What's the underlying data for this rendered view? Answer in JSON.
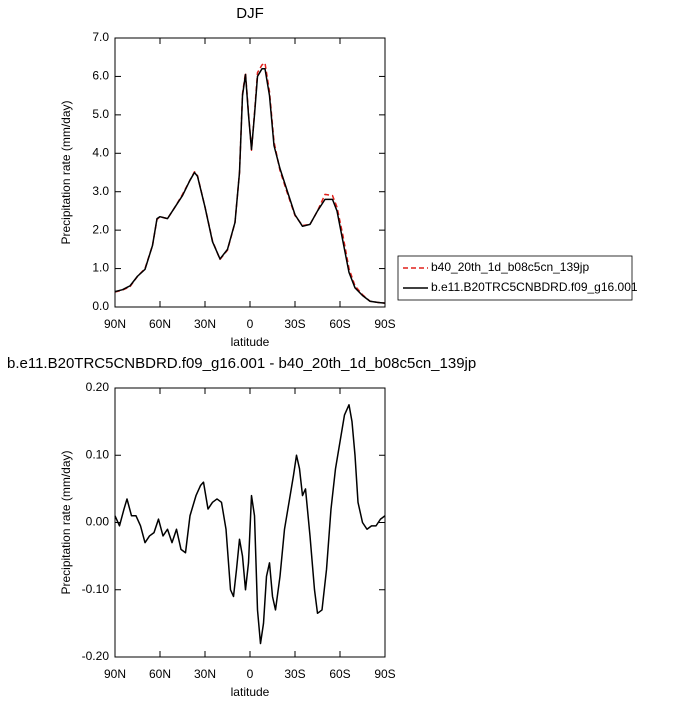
{
  "chart_data": [
    {
      "type": "line",
      "title": "DJF",
      "xlabel": "latitude",
      "ylabel": "Precipitation rate (mm/day)",
      "x": [
        90,
        85,
        80,
        75,
        70,
        65,
        62,
        60,
        55,
        50,
        45,
        40,
        37,
        35,
        30,
        25,
        20,
        15,
        10,
        7,
        5,
        3,
        1,
        -1,
        -3,
        -5,
        -8,
        -10,
        -13,
        -16,
        -20,
        -25,
        -30,
        -35,
        -40,
        -45,
        -50,
        -55,
        -58,
        -62,
        -66,
        -70,
        -75,
        -80,
        -85,
        -90
      ],
      "series": [
        {
          "name": "b40_20th_1d_b08c5cn_139jp",
          "color": "#e0201b",
          "dash": true,
          "values": [
            0.39,
            0.44,
            0.53,
            0.8,
            1.0,
            1.6,
            2.28,
            2.35,
            2.3,
            2.6,
            2.93,
            3.3,
            3.52,
            3.42,
            2.6,
            1.72,
            1.24,
            1.48,
            2.2,
            3.5,
            5.55,
            6.1,
            5.05,
            4.08,
            5.05,
            6.1,
            6.3,
            6.35,
            5.6,
            4.3,
            3.55,
            2.95,
            2.38,
            2.12,
            2.15,
            2.5,
            2.93,
            2.9,
            2.6,
            1.85,
            1.0,
            0.55,
            0.32,
            0.15,
            0.12,
            0.1
          ]
        },
        {
          "name": "b.e11.B20TRC5CNBDRD.f09_g16.001",
          "color": "#000000",
          "dash": false,
          "values": [
            0.4,
            0.45,
            0.55,
            0.8,
            0.98,
            1.6,
            2.3,
            2.35,
            2.3,
            2.6,
            2.9,
            3.3,
            3.5,
            3.4,
            2.6,
            1.7,
            1.25,
            1.5,
            2.2,
            3.5,
            5.5,
            6.05,
            5.0,
            4.1,
            5.0,
            6.0,
            6.2,
            6.2,
            5.5,
            4.2,
            3.6,
            3.0,
            2.4,
            2.1,
            2.15,
            2.5,
            2.8,
            2.8,
            2.5,
            1.7,
            0.9,
            0.5,
            0.3,
            0.15,
            0.12,
            0.1
          ]
        }
      ],
      "xlim": [
        90,
        -90
      ],
      "xticks": [
        {
          "value": 90,
          "label": "90N"
        },
        {
          "value": 60,
          "label": "60N"
        },
        {
          "value": 30,
          "label": "30N"
        },
        0,
        {
          "value": -30,
          "label": "30S"
        },
        {
          "value": -60,
          "label": "60S"
        },
        {
          "value": -90,
          "label": "90S"
        }
      ],
      "ylim": [
        0,
        7
      ],
      "yticks": [
        {
          "value": 0,
          "label": "0.0"
        },
        {
          "value": 1,
          "label": "1.0"
        },
        {
          "value": 2,
          "label": "2.0"
        },
        {
          "value": 3,
          "label": "3.0"
        },
        {
          "value": 4,
          "label": "4.0"
        },
        {
          "value": 5,
          "label": "5.0"
        },
        {
          "value": 6,
          "label": "6.0"
        },
        {
          "value": 7,
          "label": "7.0"
        }
      ],
      "legend": "right"
    },
    {
      "type": "line",
      "title": "b.e11.B20TRC5CNBDRD.f09_g16.001 - b40_20th_1d_b08c5cn_139jp",
      "xlabel": "latitude",
      "ylabel": "Precipitation rate (mm/day)",
      "x": [
        90,
        87,
        84,
        82,
        79,
        76,
        73,
        70,
        67,
        64,
        61,
        58,
        55,
        52,
        49,
        46,
        43,
        40,
        36,
        33,
        31,
        28,
        25,
        22,
        19,
        16,
        13,
        11,
        9,
        7,
        5,
        3,
        1,
        -1,
        -3,
        -5,
        -7,
        -9,
        -11,
        -13,
        -15,
        -17,
        -20,
        -23,
        -26,
        -29,
        -31,
        -33,
        -35,
        -37,
        -40,
        -43,
        -45,
        -48,
        -51,
        -54,
        -57,
        -60,
        -63,
        -66,
        -68,
        -70,
        -72,
        -75,
        -78,
        -81,
        -84,
        -87,
        -90
      ],
      "values": [
        0.01,
        -0.005,
        0.02,
        0.035,
        0.01,
        0.01,
        -0.005,
        -0.03,
        -0.02,
        -0.015,
        0.005,
        -0.02,
        -0.01,
        -0.03,
        -0.01,
        -0.04,
        -0.045,
        0.01,
        0.04,
        0.055,
        0.06,
        0.02,
        0.03,
        0.035,
        0.03,
        -0.01,
        -0.1,
        -0.11,
        -0.07,
        -0.025,
        -0.05,
        -0.1,
        -0.06,
        0.04,
        0.01,
        -0.13,
        -0.18,
        -0.15,
        -0.08,
        -0.06,
        -0.11,
        -0.13,
        -0.08,
        -0.01,
        0.03,
        0.07,
        0.1,
        0.08,
        0.04,
        0.05,
        -0.02,
        -0.1,
        -0.135,
        -0.13,
        -0.07,
        0.02,
        0.08,
        0.12,
        0.16,
        0.175,
        0.15,
        0.1,
        0.03,
        0.0,
        -0.01,
        -0.005,
        -0.005,
        0.005,
        0.01
      ],
      "color": "#000000",
      "xlim": [
        90,
        -90
      ],
      "xticks": [
        {
          "value": 90,
          "label": "90N"
        },
        {
          "value": 60,
          "label": "60N"
        },
        {
          "value": 30,
          "label": "30N"
        },
        0,
        {
          "value": -30,
          "label": "30S"
        },
        {
          "value": -60,
          "label": "60S"
        },
        {
          "value": -90,
          "label": "90S"
        }
      ],
      "ylim": [
        -0.2,
        0.2
      ],
      "yticks": [
        {
          "value": -0.2,
          "label": "-0.20"
        },
        {
          "value": -0.1,
          "label": "-0.10"
        },
        {
          "value": 0,
          "label": "0.00"
        },
        {
          "value": 0.1,
          "label": "0.10"
        },
        {
          "value": 0.2,
          "label": "0.20"
        }
      ]
    }
  ]
}
